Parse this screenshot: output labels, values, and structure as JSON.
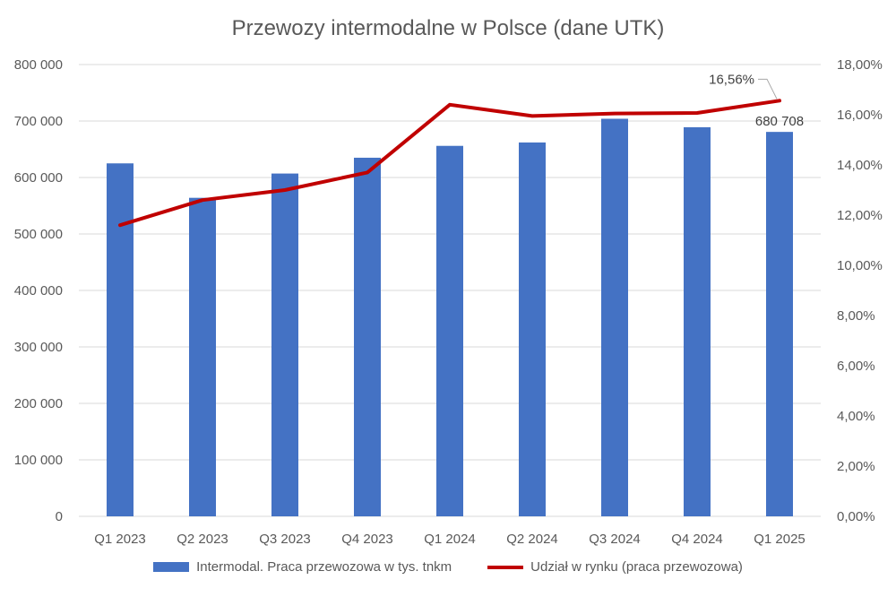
{
  "chart_data": {
    "type": "bar",
    "title": "Przewozy intermodalne w Polsce (dane UTK)",
    "categories": [
      "Q1 2023",
      "Q2 2023",
      "Q3 2023",
      "Q4 2023",
      "Q1 2024",
      "Q2 2024",
      "Q3 2024",
      "Q4 2024",
      "Q1 2025"
    ],
    "series": [
      {
        "name": "Intermodal. Praca przewozowa w tys. tnkm",
        "type": "bar",
        "axis": "left",
        "color": "#4472C4",
        "values": [
          625000,
          564000,
          607000,
          635000,
          656000,
          662000,
          704000,
          689000,
          680708
        ]
      },
      {
        "name": "Udział w rynku (praca przewozowa)",
        "type": "line",
        "axis": "right",
        "color": "#C00000",
        "values": [
          11.6,
          12.6,
          13.0,
          13.7,
          16.4,
          15.95,
          16.05,
          16.07,
          16.56
        ]
      }
    ],
    "y_left": {
      "ylim": [
        0,
        800000
      ],
      "ticks": [
        "0",
        "100 000",
        "200 000",
        "300 000",
        "400 000",
        "500 000",
        "600 000",
        "700 000",
        "800 000"
      ]
    },
    "y_right": {
      "ylim": [
        0,
        18
      ],
      "ticks": [
        "0,00%",
        "2,00%",
        "4,00%",
        "6,00%",
        "8,00%",
        "10,00%",
        "12,00%",
        "14,00%",
        "16,00%",
        "18,00%"
      ]
    },
    "annotations": [
      {
        "series": 0,
        "index": 8,
        "text": "680 708"
      },
      {
        "series": 1,
        "index": 8,
        "text": "16,56%"
      }
    ],
    "grid": true,
    "legend": "bottom"
  }
}
